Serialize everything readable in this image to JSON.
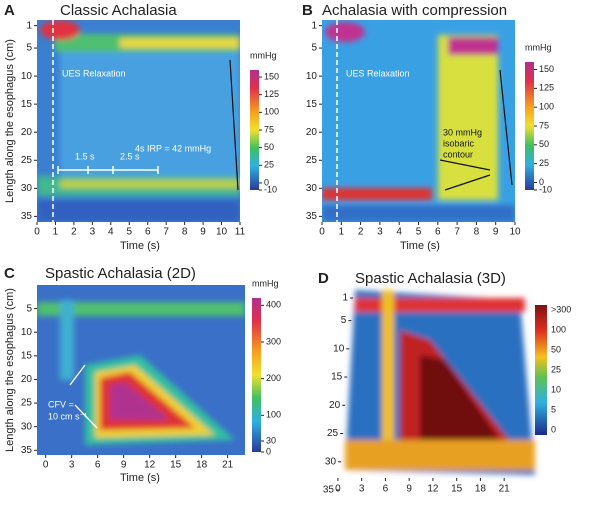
{
  "chart_data": [
    {
      "type": "heatmap",
      "panel_label": "A",
      "title": "Classic Achalasia",
      "x_label": "Time (s)",
      "y_label": "Length along the esophagus (cm)",
      "xlim": [
        0,
        11
      ],
      "xticks": [
        0,
        1,
        2,
        3,
        4,
        5,
        6,
        7,
        8,
        9,
        10,
        11
      ],
      "ylim": [
        0,
        36
      ],
      "yticks": [
        1,
        5,
        10,
        15,
        20,
        25,
        30,
        35
      ],
      "colorbar": {
        "unit": "mmHg",
        "lim": [
          -10,
          160
        ],
        "ticks": [
          150,
          125,
          100,
          75,
          50,
          25,
          0,
          -10
        ]
      },
      "annotations": [
        "UES Relaxation",
        "4s IRP = 42 mmHg",
        "1.5 s",
        "2.5 s"
      ]
    },
    {
      "type": "heatmap",
      "panel_label": "B",
      "title": "Achalasia with compression",
      "x_label": "Time (s)",
      "xlim": [
        0,
        10
      ],
      "xticks": [
        0,
        1,
        2,
        3,
        4,
        5,
        6,
        7,
        8,
        9,
        10
      ],
      "ylim": [
        0,
        36
      ],
      "yticks": [
        1,
        5,
        10,
        15,
        20,
        25,
        30,
        35
      ],
      "colorbar": {
        "unit": "mmHg",
        "lim": [
          -10,
          160
        ],
        "ticks": [
          150,
          125,
          100,
          75,
          50,
          25,
          0,
          -10
        ]
      },
      "annotations": [
        "UES Relaxation",
        "30 mmHg",
        "isobaric",
        "contour"
      ]
    },
    {
      "type": "heatmap",
      "panel_label": "C",
      "title": "Spastic Achalasia (2D)",
      "x_label": "Time (s)",
      "y_label": "Length along the esophagus (cm)",
      "xlim": [
        -1,
        23
      ],
      "xticks": [
        0,
        3,
        6,
        9,
        12,
        15,
        18,
        21
      ],
      "ylim": [
        0,
        36
      ],
      "yticks": [
        5,
        10,
        15,
        20,
        25,
        30,
        35
      ],
      "colorbar": {
        "unit": "mmHg",
        "lim": [
          0,
          420
        ],
        "ticks": [
          400,
          300,
          200,
          100,
          30,
          0
        ]
      },
      "annotations": [
        "CFV =",
        "10 cm s⁻¹"
      ]
    },
    {
      "type": "heatmap3d",
      "panel_label": "D",
      "title": "Spastic Achalasia (3D)",
      "xlim": [
        -1,
        23
      ],
      "xticks": [
        0,
        3,
        6,
        9,
        12,
        15,
        18,
        21
      ],
      "ylim": [
        1,
        35
      ],
      "yticks": [
        1,
        5,
        10,
        15,
        20,
        25,
        30,
        35
      ],
      "colorbar": {
        "labels": [
          ">300",
          "100",
          "50",
          "25",
          "10",
          "5",
          "0"
        ]
      }
    }
  ]
}
